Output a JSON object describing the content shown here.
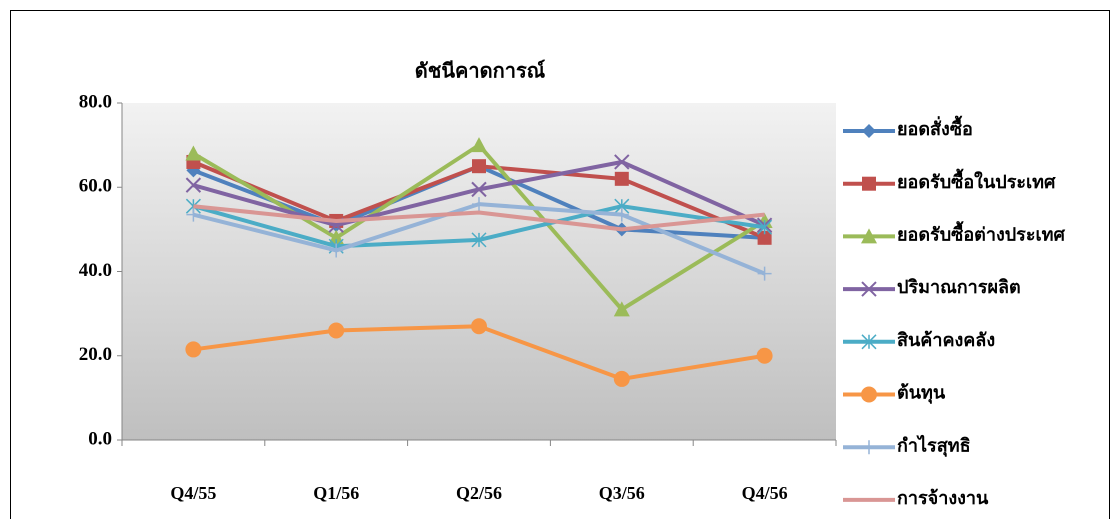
{
  "chart_data": {
    "type": "line",
    "title": "ดัชนีคาดการณ์",
    "categories": [
      "Q4/55",
      "Q1/56",
      "Q2/56",
      "Q3/56",
      "Q4/56"
    ],
    "ylim": [
      0,
      80
    ],
    "yticks": [
      {
        "value": 0,
        "label": "0.0"
      },
      {
        "value": 20,
        "label": "20.0"
      },
      {
        "value": 40,
        "label": "40.0"
      },
      {
        "value": 60,
        "label": "60.0"
      },
      {
        "value": 80,
        "label": "80.0"
      }
    ],
    "legend": "right",
    "series": [
      {
        "name": "ยอดสั่งซื้อ",
        "color": "#4F81BD",
        "marker": "diamond",
        "values": [
          64,
          51,
          65,
          50,
          48
        ]
      },
      {
        "name": "ยอดรับซื้อในประเทศ",
        "color": "#C0504D",
        "marker": "square",
        "values": [
          66,
          52,
          65,
          62,
          48
        ]
      },
      {
        "name": "ยอดรับซื้อต่างประเทศ",
        "color": "#9BBB59",
        "marker": "triangle",
        "values": [
          68,
          48,
          70,
          31,
          52
        ]
      },
      {
        "name": "ปริมาณการผลิต",
        "color": "#8064A2",
        "marker": "x",
        "values": [
          60.5,
          51,
          59.5,
          66,
          51
        ]
      },
      {
        "name": "สินค้าคงคลัง",
        "color": "#4BACC6",
        "marker": "star",
        "values": [
          55.5,
          46,
          47.5,
          55.5,
          50.5
        ]
      },
      {
        "name": "ต้นทุน",
        "color": "#F79646",
        "marker": "circle",
        "values": [
          21.5,
          26,
          27,
          14.5,
          20
        ]
      },
      {
        "name": "กำไรสุทธิ",
        "color": "#95B3D7",
        "marker": "plus",
        "values": [
          53.5,
          45,
          56,
          53.5,
          39.5
        ]
      },
      {
        "name": "การจ้างงาน",
        "color": "#D99694",
        "marker": "none",
        "values": [
          55.5,
          52,
          54,
          50,
          53.5
        ]
      }
    ]
  }
}
